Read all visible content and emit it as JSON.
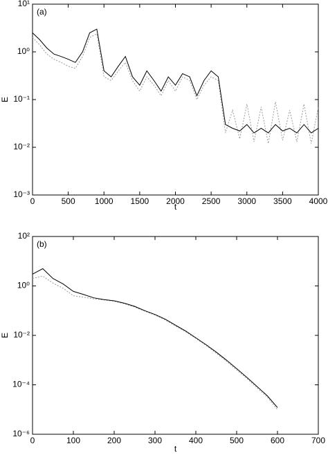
{
  "chart_data": [
    {
      "type": "line",
      "annotation": "(a)",
      "xlabel": "t",
      "ylabel": "E",
      "yscale": "log",
      "xlim": [
        0,
        4000
      ],
      "ylim": [
        0.001,
        10
      ],
      "xticks": [
        0,
        500,
        1000,
        1500,
        2000,
        2500,
        3000,
        3500,
        4000
      ],
      "yticks": [
        {
          "value": 0.001,
          "label": "10⁻³"
        },
        {
          "value": 0.01,
          "label": "10⁻²"
        },
        {
          "value": 0.1,
          "label": "10⁻¹"
        },
        {
          "value": 1,
          "label": "10⁰"
        },
        {
          "value": 10,
          "label": "10¹"
        }
      ],
      "x": [
        0,
        100,
        200,
        300,
        400,
        500,
        600,
        700,
        800,
        900,
        1000,
        1100,
        1200,
        1300,
        1400,
        1500,
        1600,
        1700,
        1800,
        1900,
        2000,
        2100,
        2200,
        2300,
        2400,
        2500,
        2600,
        2700,
        2800,
        2900,
        3000,
        3100,
        3200,
        3300,
        3400,
        3500,
        3600,
        3700,
        3800,
        3900,
        4000
      ],
      "series": [
        {
          "color": "#999999",
          "linestyle": "dotted",
          "values": [
            2.0,
            1.4,
            0.9,
            0.7,
            0.6,
            0.5,
            0.45,
            0.8,
            2.0,
            2.4,
            0.3,
            0.25,
            0.4,
            0.6,
            0.25,
            0.15,
            0.3,
            0.2,
            0.12,
            0.25,
            0.15,
            0.3,
            0.25,
            0.1,
            0.2,
            0.3,
            0.25,
            0.02,
            0.06,
            0.015,
            0.08,
            0.013,
            0.07,
            0.012,
            0.09,
            0.014,
            0.06,
            0.013,
            0.08,
            0.012,
            0.07
          ]
        },
        {
          "color": "#000000",
          "linestyle": "solid",
          "values": [
            2.5,
            1.8,
            1.2,
            0.9,
            0.8,
            0.7,
            0.6,
            1.0,
            2.5,
            3.0,
            0.4,
            0.3,
            0.5,
            0.8,
            0.3,
            0.2,
            0.4,
            0.25,
            0.15,
            0.3,
            0.2,
            0.35,
            0.3,
            0.12,
            0.25,
            0.4,
            0.3,
            0.03,
            0.025,
            0.022,
            0.03,
            0.02,
            0.025,
            0.02,
            0.03,
            0.022,
            0.025,
            0.02,
            0.03,
            0.02,
            0.025
          ]
        }
      ]
    },
    {
      "type": "line",
      "annotation": "(b)",
      "xlabel": "t",
      "ylabel": "E",
      "yscale": "log",
      "xlim": [
        0,
        700
      ],
      "ylim": [
        1e-06,
        100
      ],
      "xticks": [
        0,
        100,
        200,
        300,
        400,
        500,
        600,
        700
      ],
      "yticks": [
        {
          "value": 1e-06,
          "label": "10⁻⁶"
        },
        {
          "value": 0.0001,
          "label": "10⁻⁴"
        },
        {
          "value": 0.01,
          "label": "10⁻²"
        },
        {
          "value": 1,
          "label": "10⁰"
        },
        {
          "value": 100,
          "label": "10²"
        }
      ],
      "x": [
        0,
        25,
        50,
        75,
        100,
        125,
        150,
        175,
        200,
        225,
        250,
        275,
        300,
        325,
        350,
        375,
        400,
        425,
        450,
        475,
        500,
        525,
        550,
        575,
        600
      ],
      "series": [
        {
          "color": "#999999",
          "linestyle": "dotted",
          "values": [
            2,
            2.5,
            1.3,
            0.8,
            0.4,
            0.35,
            0.3,
            0.27,
            0.24,
            0.19,
            0.14,
            0.095,
            0.066,
            0.042,
            0.024,
            0.014,
            0.0075,
            0.0039,
            0.0019,
            0.0009,
            0.0004,
            0.00018,
            7.5e-05,
            3.2e-05,
            1e-05
          ]
        },
        {
          "color": "#000000",
          "linestyle": "solid",
          "values": [
            3,
            5,
            2,
            1.2,
            0.6,
            0.45,
            0.33,
            0.28,
            0.25,
            0.2,
            0.15,
            0.1,
            0.07,
            0.045,
            0.026,
            0.015,
            0.008,
            0.0042,
            0.0021,
            0.001,
            0.00045,
            0.0002,
            8.5e-05,
            3.6e-05,
            1.2e-05
          ]
        }
      ]
    }
  ]
}
